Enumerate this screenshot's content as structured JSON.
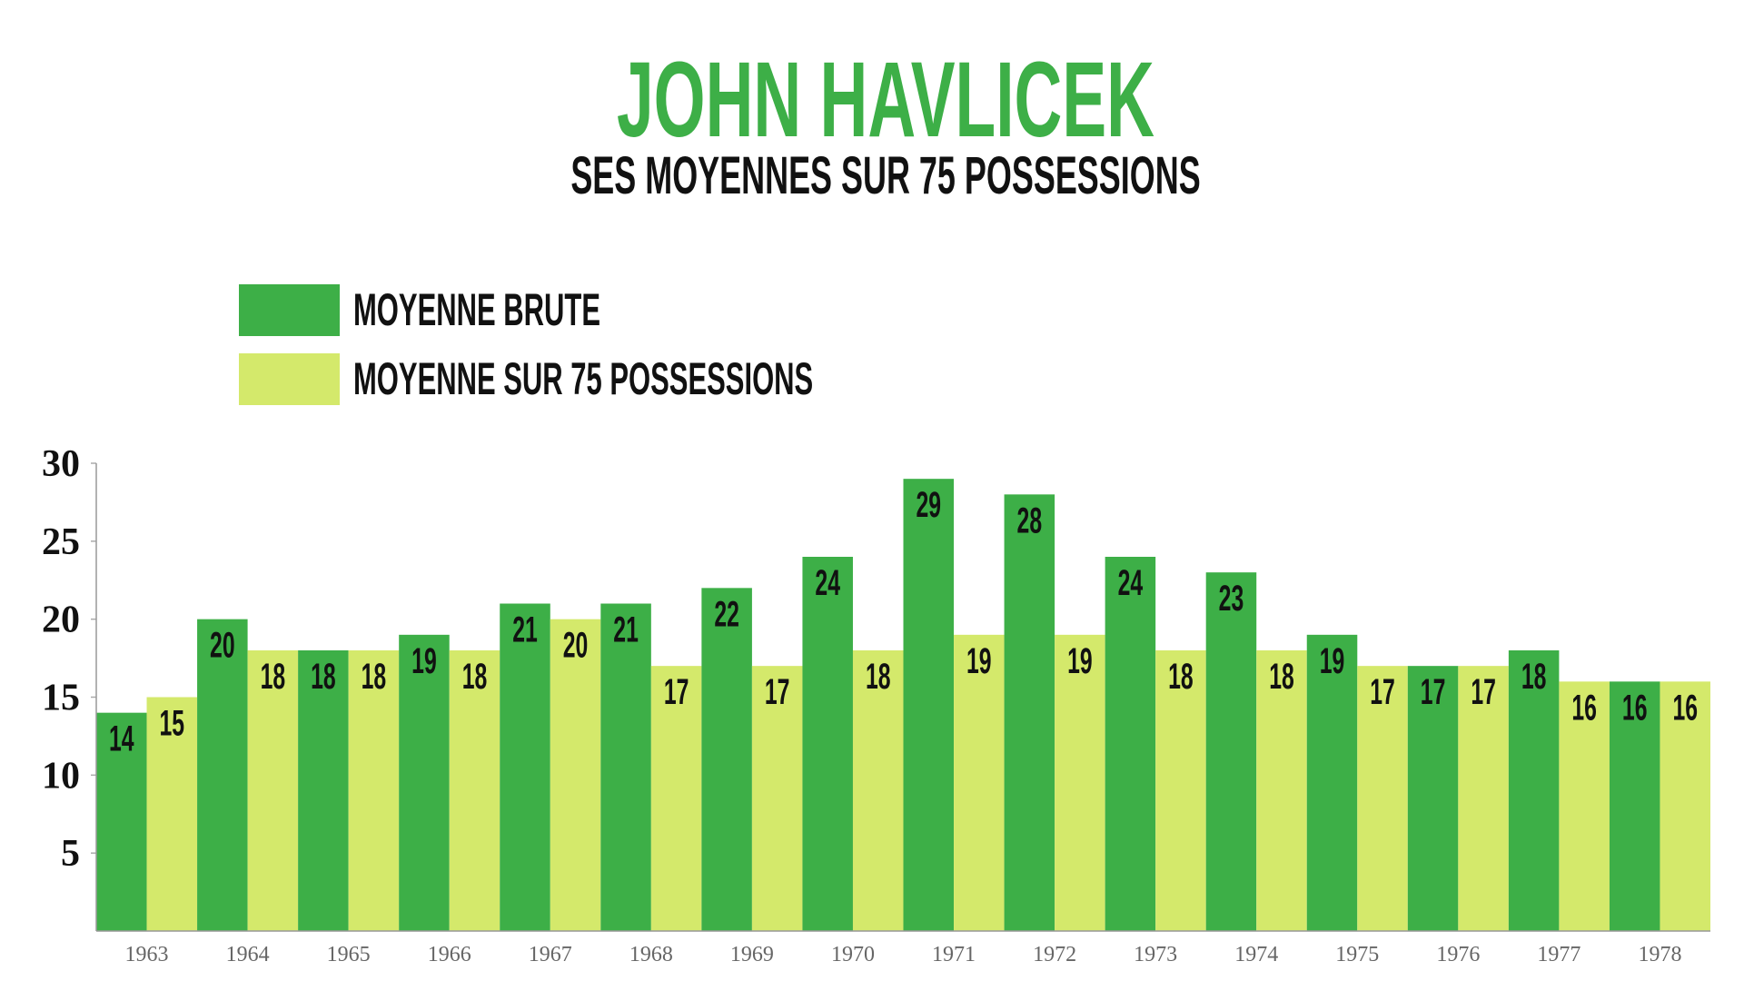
{
  "chart_data": {
    "type": "bar",
    "title": "JOHN HAVLICEK",
    "subtitle": "SES MOYENNES SUR 75 POSSESSIONS",
    "categories": [
      "1963",
      "1964",
      "1965",
      "1966",
      "1967",
      "1968",
      "1969",
      "1970",
      "1971",
      "1972",
      "1973",
      "1974",
      "1975",
      "1976",
      "1977",
      "1978"
    ],
    "series": [
      {
        "name": "MOYENNE BRUTE",
        "color": "#3daf47",
        "values": [
          14,
          20,
          18,
          19,
          21,
          21,
          22,
          24,
          29,
          28,
          24,
          23,
          19,
          17,
          18,
          16
        ]
      },
      {
        "name": "MOYENNE SUR 75 POSSESSIONS",
        "color": "#d4e96b",
        "values": [
          15,
          18,
          18,
          18,
          20,
          17,
          17,
          18,
          19,
          19,
          18,
          18,
          17,
          17,
          16,
          16
        ]
      }
    ],
    "ylim": [
      0,
      30
    ],
    "yticks": [
      5,
      10,
      15,
      20,
      25,
      30
    ],
    "grid": false
  }
}
